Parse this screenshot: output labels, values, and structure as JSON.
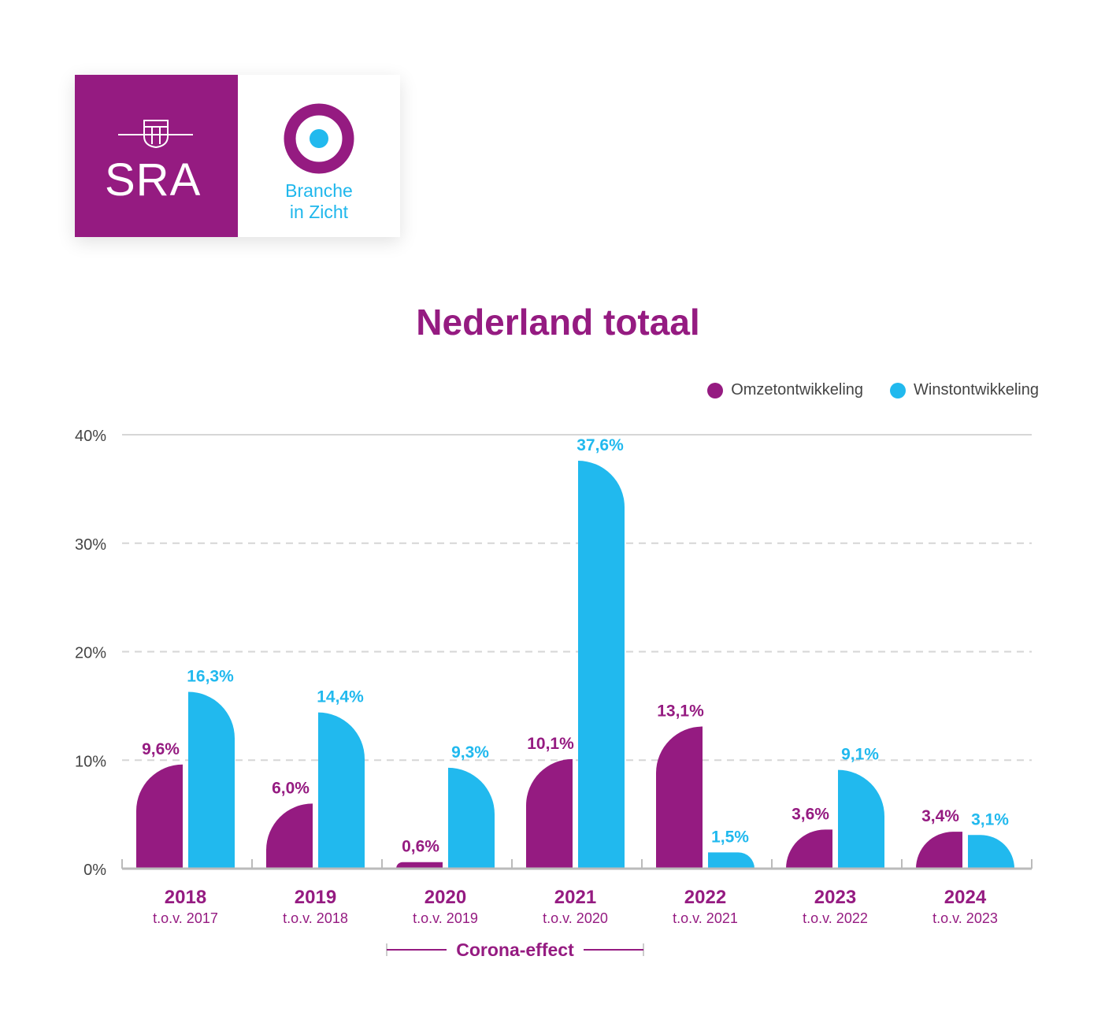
{
  "logo": {
    "brand": "SRA",
    "product_line1": "Branche",
    "product_line2": "in Zicht"
  },
  "colors": {
    "purple": "#951b81",
    "blue": "#21b9ee",
    "grid": "#d6d6d6",
    "axis_text": "#444444"
  },
  "chart_data": {
    "type": "bar",
    "title": "Nederland totaal",
    "categories": [
      "2018",
      "2019",
      "2020",
      "2021",
      "2022",
      "2023",
      "2024"
    ],
    "subcategories": [
      "t.o.v. 2017",
      "t.o.v. 2018",
      "t.o.v. 2019",
      "t.o.v. 2020",
      "t.o.v. 2021",
      "t.o.v. 2022",
      "t.o.v. 2023"
    ],
    "series": [
      {
        "name": "Omzetontwikkeling",
        "color": "#951b81",
        "values": [
          9.6,
          6.0,
          0.6,
          10.1,
          13.1,
          3.6,
          3.4
        ],
        "labels": [
          "9,6%",
          "6,0%",
          "0,6%",
          "10,1%",
          "13,1%",
          "3,6%",
          "3,4%"
        ]
      },
      {
        "name": "Winstontwikkeling",
        "color": "#21b9ee",
        "values": [
          16.3,
          14.4,
          9.3,
          37.6,
          1.5,
          9.1,
          3.1
        ],
        "labels": [
          "16,3%",
          "14,4%",
          "9,3%",
          "37,6%",
          "1,5%",
          "9,1%",
          "3,1%"
        ]
      }
    ],
    "yticks": [
      0,
      10,
      20,
      30,
      40
    ],
    "ytick_labels": [
      "0%",
      "10%",
      "20%",
      "30%",
      "40%"
    ],
    "ylim": [
      0,
      40
    ],
    "grid": true,
    "legend": "top-right",
    "annotation": "Corona-effect"
  }
}
